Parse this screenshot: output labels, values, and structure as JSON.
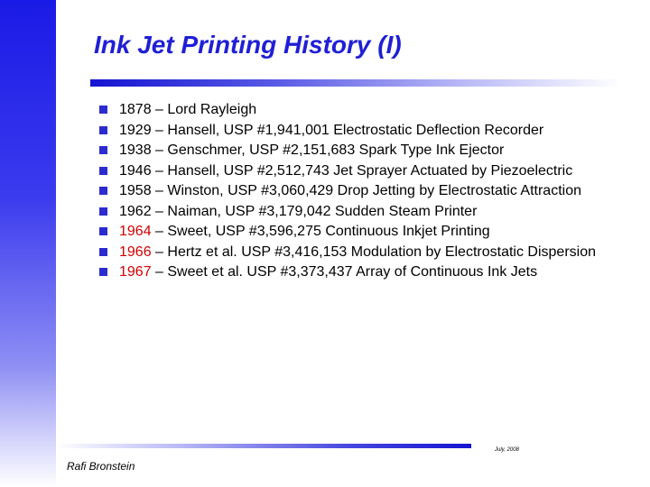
{
  "slide": {
    "title": "Ink Jet Printing History (I)",
    "bullets": [
      {
        "year": "",
        "text": "1878 – Lord Rayleigh"
      },
      {
        "year": "",
        "text": "1929 – Hansell, USP #1,941,001 Electrostatic Deflection Recorder"
      },
      {
        "year": "",
        "text": "1938 – Genschmer, USP #2,151,683 Spark Type Ink Ejector"
      },
      {
        "year": "",
        "text": "1946 – Hansell, USP #2,512,743 Jet Sprayer Actuated by Piezoelectric"
      },
      {
        "year": "",
        "text": "1958 – Winston, USP #3,060,429 Drop Jetting by Electrostatic Attraction"
      },
      {
        "year": "",
        "text": "1962 – Naiman, USP #3,179,042 Sudden Steam Printer"
      },
      {
        "year": "1964",
        "text": " – Sweet,  USP #3,596,275 Continuous Inkjet Printing"
      },
      {
        "year": "1966",
        "text": " – Hertz et al. USP #3,416,153 Modulation by Electrostatic Dispersion"
      },
      {
        "year": "1967",
        "text": " – Sweet et al. USP #3,373,437 Array of Continuous Ink Jets"
      }
    ],
    "footer_author": "Rafi Bronstein",
    "footer_date": "July, 2008"
  },
  "colors": {
    "title": "#1f1fd6",
    "bullet": "#2b2bcf",
    "highlight_year": "#d40000",
    "accent_bar": "#1a1ae6"
  }
}
